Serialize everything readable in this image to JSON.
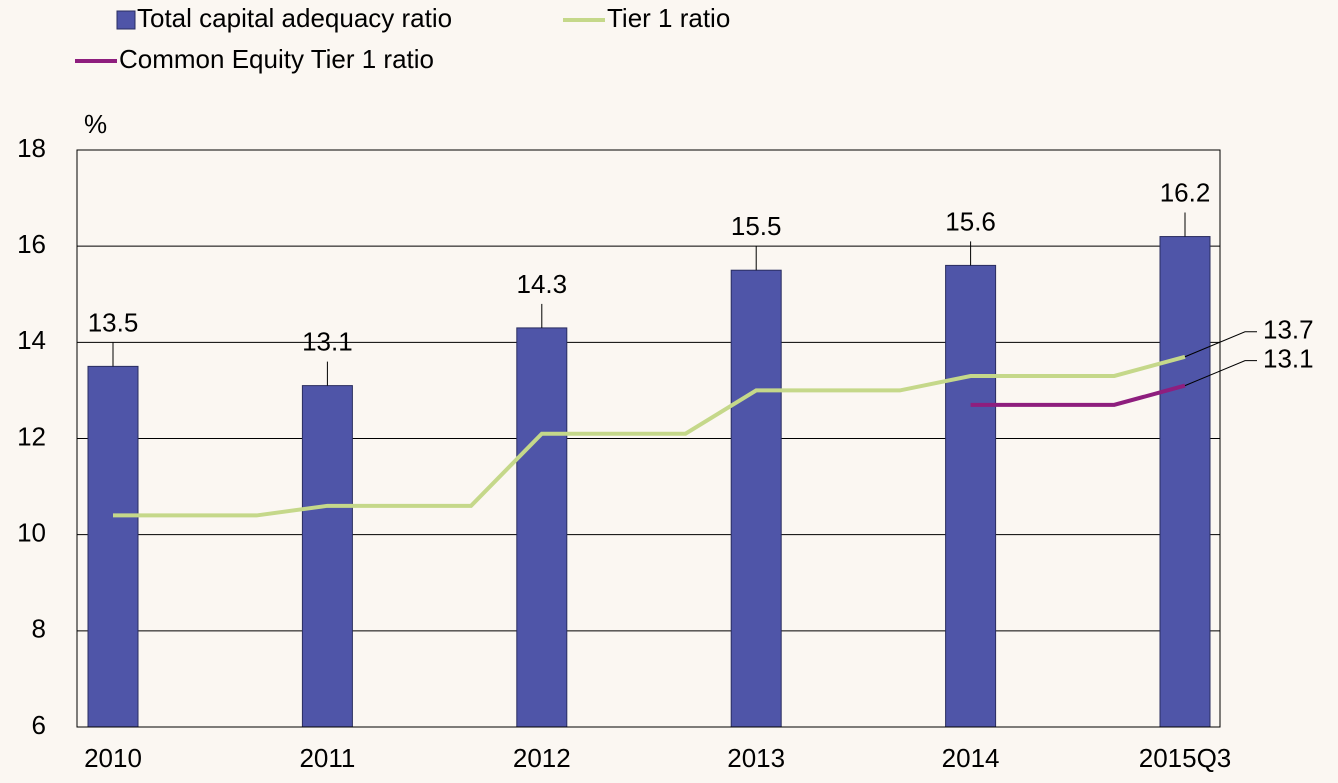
{
  "chart_data": {
    "type": "bar",
    "y_unit": "%",
    "categories": [
      "2010",
      "2011",
      "2012",
      "2013",
      "2014",
      "2015Q3"
    ],
    "series": [
      {
        "name": "Total capital adequacy ratio",
        "type": "bar",
        "color": "#4f55a8",
        "values": [
          13.5,
          13.1,
          14.3,
          15.5,
          15.6,
          16.2
        ]
      },
      {
        "name": "Tier 1 ratio",
        "type": "line",
        "color": "#c5d88a",
        "values": [
          10.4,
          10.6,
          12.1,
          13.0,
          13.3,
          13.7
        ]
      },
      {
        "name": "Common Equity Tier 1 ratio",
        "type": "line",
        "color": "#8e1e7e",
        "values": [
          null,
          null,
          null,
          null,
          12.7,
          13.1
        ]
      }
    ],
    "ylim": [
      6,
      18
    ],
    "yticks": [
      6,
      8,
      10,
      12,
      14,
      16,
      18
    ],
    "grid": true,
    "legend": "top"
  }
}
